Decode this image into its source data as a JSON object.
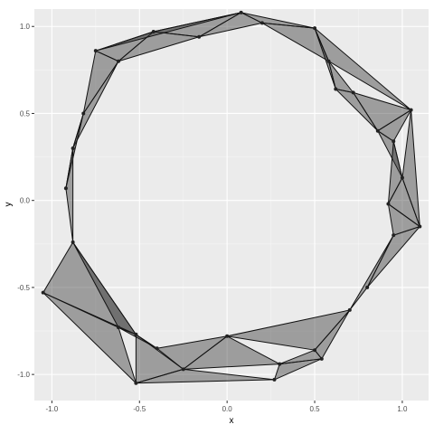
{
  "chart_data": {
    "type": "scatter",
    "xlabel": "x",
    "ylabel": "y",
    "xlim": [
      -1.1,
      1.15
    ],
    "ylim": [
      -1.15,
      1.1
    ],
    "x_ticks": [
      -1.0,
      -0.5,
      0.0,
      0.5,
      1.0
    ],
    "x_tick_labels": [
      "-1.0",
      "-0.5",
      "0.0",
      "0.5",
      "1.0"
    ],
    "y_ticks": [
      -1.0,
      -0.5,
      0.0,
      0.5,
      1.0
    ],
    "y_tick_labels": [
      "-1.0",
      "-0.5",
      "0.0",
      "0.5",
      "1.0"
    ],
    "grid": true,
    "points": [
      {
        "x": 0.08,
        "y": 1.08
      },
      {
        "x": 0.5,
        "y": 0.99
      },
      {
        "x": -0.42,
        "y": 0.97
      },
      {
        "x": -0.16,
        "y": 0.94
      },
      {
        "x": 0.2,
        "y": 1.02
      },
      {
        "x": 0.58,
        "y": 0.8
      },
      {
        "x": -0.75,
        "y": 0.86
      },
      {
        "x": -0.62,
        "y": 0.8
      },
      {
        "x": 1.05,
        "y": 0.52
      },
      {
        "x": 0.62,
        "y": 0.64
      },
      {
        "x": 0.72,
        "y": 0.62
      },
      {
        "x": 0.86,
        "y": 0.4
      },
      {
        "x": 0.95,
        "y": 0.34
      },
      {
        "x": -0.82,
        "y": 0.5
      },
      {
        "x": -0.88,
        "y": 0.3
      },
      {
        "x": 1.0,
        "y": 0.13
      },
      {
        "x": 0.92,
        "y": -0.02
      },
      {
        "x": 1.1,
        "y": -0.15
      },
      {
        "x": -0.92,
        "y": 0.07
      },
      {
        "x": -0.88,
        "y": -0.24
      },
      {
        "x": -1.05,
        "y": -0.53
      },
      {
        "x": 0.95,
        "y": -0.2
      },
      {
        "x": 0.8,
        "y": -0.5
      },
      {
        "x": 0.7,
        "y": -0.63
      },
      {
        "x": -0.62,
        "y": -0.73
      },
      {
        "x": -0.52,
        "y": -0.77
      },
      {
        "x": 0.54,
        "y": -0.91
      },
      {
        "x": 0.0,
        "y": -0.78
      },
      {
        "x": 0.3,
        "y": -0.94
      },
      {
        "x": -0.25,
        "y": -0.97
      },
      {
        "x": -0.52,
        "y": -1.05
      },
      {
        "x": 0.27,
        "y": -1.03
      },
      {
        "x": 0.5,
        "y": -0.86
      },
      {
        "x": -0.4,
        "y": -0.85
      }
    ],
    "triangles": [
      [
        0,
        1,
        4
      ],
      [
        0,
        3,
        4
      ],
      [
        3,
        2,
        0
      ],
      [
        2,
        6,
        7
      ],
      [
        2,
        3,
        7
      ],
      [
        4,
        1,
        5
      ],
      [
        1,
        8,
        5
      ],
      [
        5,
        9,
        10
      ],
      [
        8,
        10,
        11
      ],
      [
        8,
        12,
        11
      ],
      [
        6,
        13,
        7
      ],
      [
        13,
        14,
        7
      ],
      [
        12,
        15,
        11
      ],
      [
        15,
        16,
        17
      ],
      [
        8,
        15,
        17
      ],
      [
        13,
        18,
        14
      ],
      [
        18,
        19,
        14
      ],
      [
        19,
        20,
        25
      ],
      [
        19,
        24,
        25
      ],
      [
        16,
        21,
        17
      ],
      [
        21,
        22,
        17
      ],
      [
        22,
        23,
        21
      ],
      [
        23,
        26,
        32
      ],
      [
        24,
        25,
        33
      ],
      [
        25,
        30,
        29
      ],
      [
        29,
        27,
        33
      ],
      [
        27,
        28,
        29
      ],
      [
        28,
        31,
        26
      ],
      [
        26,
        32,
        28
      ],
      [
        20,
        24,
        30
      ],
      [
        27,
        32,
        23
      ],
      [
        30,
        31,
        29
      ],
      [
        0,
        2,
        6
      ],
      [
        9,
        11,
        10
      ],
      [
        16,
        12,
        15
      ],
      [
        5,
        1,
        9
      ]
    ]
  }
}
